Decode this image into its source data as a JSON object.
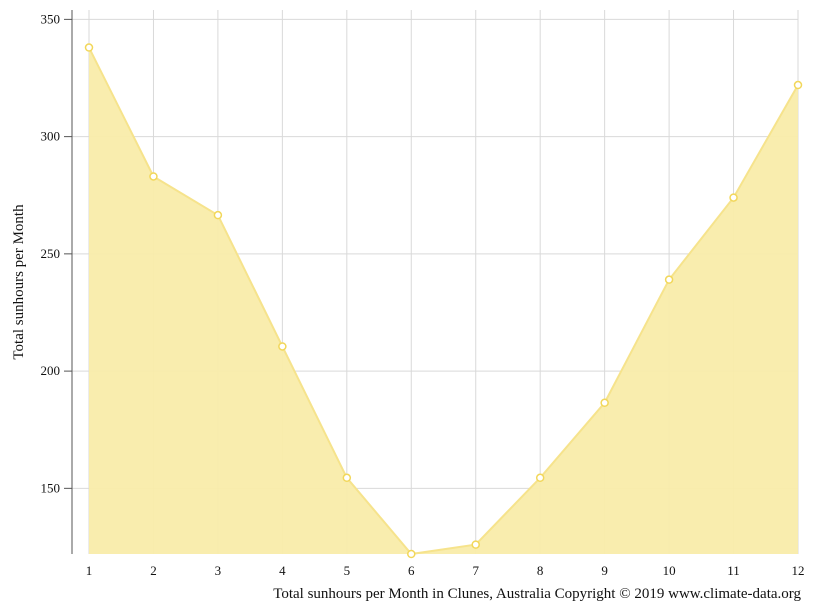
{
  "chart_data": {
    "type": "area",
    "title": "",
    "ylabel": "Total sunhours per Month",
    "xlabel": "",
    "caption": "Total sunhours per Month in Clunes, Australia Copyright © 2019 www.climate-data.org",
    "x": [
      1,
      2,
      3,
      4,
      5,
      6,
      7,
      8,
      9,
      10,
      11,
      12
    ],
    "values": [
      338,
      283,
      266.5,
      210.5,
      154.5,
      122,
      126,
      154.5,
      186.5,
      239,
      274,
      322
    ],
    "yticks": [
      150,
      200,
      250,
      300,
      350
    ],
    "ylim": [
      122,
      354
    ],
    "grid": true,
    "colors": {
      "fill": "#f9ecaa",
      "line": "#f6e38c",
      "marker_stroke": "#f2d75a",
      "marker_fill": "#ffffff",
      "grid": "#d9d9d9",
      "axis": "#555555"
    }
  }
}
